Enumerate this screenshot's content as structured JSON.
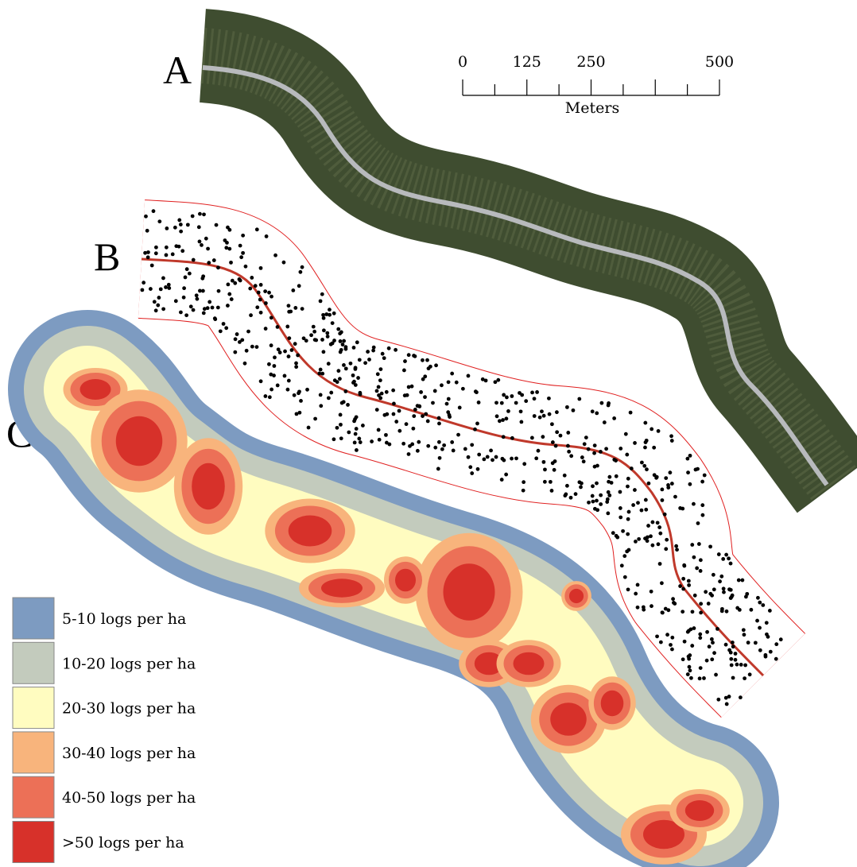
{
  "panels": [
    {
      "label": "A"
    },
    {
      "label": "B"
    },
    {
      "label": "C"
    }
  ],
  "scale_bar": {
    "ticks": [
      0,
      125,
      250,
      500
    ],
    "unit": "Meters"
  },
  "legend": [
    {
      "label": "5-10 logs per ha",
      "color": "#7d9bc1"
    },
    {
      "label": "10-20 logs per ha",
      "color": "#c3cbbd"
    },
    {
      "label": "20-30 logs per ha",
      "color": "#fffcc0"
    },
    {
      "label": "30-40 logs per ha",
      "color": "#f8b47c"
    },
    {
      "label": "40-50 logs per ha",
      "color": "#ec7057"
    },
    {
      "label": ">50 logs per ha",
      "color": "#d7312a"
    }
  ]
}
